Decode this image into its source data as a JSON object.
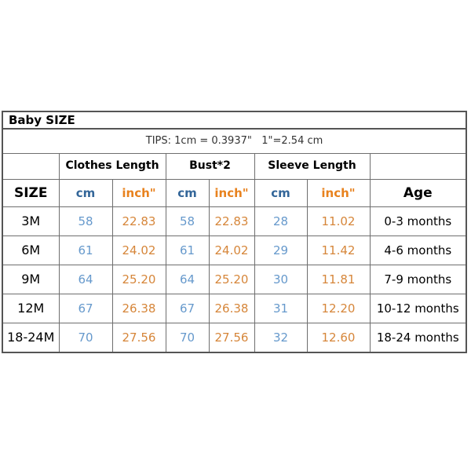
{
  "colors": {
    "header_cm_blue": "#336699",
    "header_inch_orange": "#e8821e",
    "data_cm_blue": "#6699cc",
    "data_inch_orange": "#d6863a",
    "border_gray": "#6e6e6e",
    "outer_border_gray": "#555555",
    "background": "#ffffff",
    "text": "#000000"
  },
  "chart_data": {
    "type": "table",
    "title": "Baby SIZE",
    "tips": "TIPS: 1cm = 0.3937\"   1\"=2.54 cm",
    "column_groups": [
      {
        "label": "",
        "span": 1
      },
      {
        "label": "Clothes Length",
        "span": 2
      },
      {
        "label": "Bust*2",
        "span": 2
      },
      {
        "label": "Sleeve Length",
        "span": 2
      },
      {
        "label": "",
        "span": 1
      }
    ],
    "columns": [
      "SIZE",
      "cm",
      "inch\"",
      "cm",
      "inch\"",
      "cm",
      "inch\"",
      "Age"
    ],
    "rows": [
      {
        "size": "3M",
        "clothes_cm": "58",
        "clothes_inch": "22.83",
        "bust_cm": "58",
        "bust_inch": "22.83",
        "sleeve_cm": "28",
        "sleeve_inch": "11.02",
        "age": "0-3 months"
      },
      {
        "size": "6M",
        "clothes_cm": "61",
        "clothes_inch": "24.02",
        "bust_cm": "61",
        "bust_inch": "24.02",
        "sleeve_cm": "29",
        "sleeve_inch": "11.42",
        "age": "4-6 months"
      },
      {
        "size": "9M",
        "clothes_cm": "64",
        "clothes_inch": "25.20",
        "bust_cm": "64",
        "bust_inch": "25.20",
        "sleeve_cm": "30",
        "sleeve_inch": "11.81",
        "age": "7-9 months"
      },
      {
        "size": "12M",
        "clothes_cm": "67",
        "clothes_inch": "26.38",
        "bust_cm": "67",
        "bust_inch": "26.38",
        "sleeve_cm": "31",
        "sleeve_inch": "12.20",
        "age": "10-12 months"
      },
      {
        "size": "18-24M",
        "clothes_cm": "70",
        "clothes_inch": "27.56",
        "bust_cm": "70",
        "bust_inch": "27.56",
        "sleeve_cm": "32",
        "sleeve_inch": "12.60",
        "age": "18-24 months"
      }
    ]
  }
}
